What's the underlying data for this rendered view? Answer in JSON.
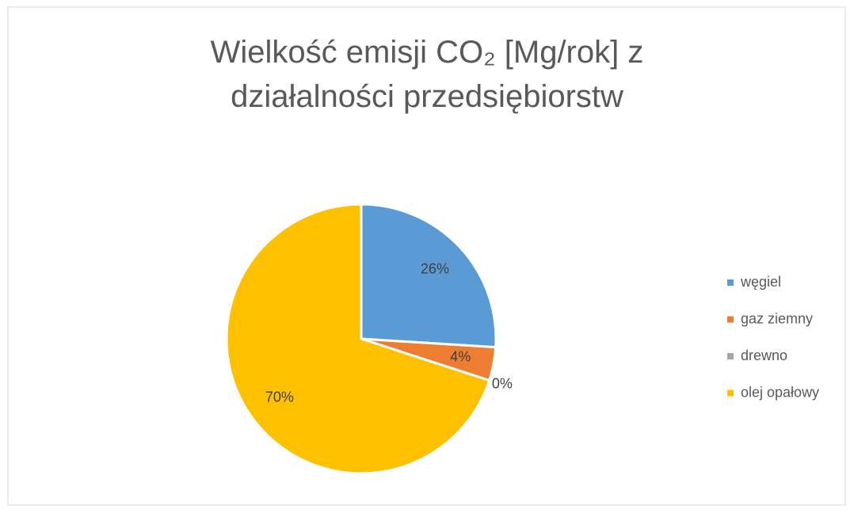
{
  "chart_data": {
    "type": "pie",
    "title": "Wielkość emisji CO₂ [Mg/rok] z działalności przedsiębiorstw",
    "categories": [
      "węgiel",
      "gaz ziemny",
      "drewno",
      "olej opałowy"
    ],
    "values": [
      26,
      4,
      0,
      70
    ],
    "value_labels": [
      "26%",
      "4%",
      "0%",
      "70%"
    ],
    "colors": [
      "#5b9bd5",
      "#ed7d31",
      "#a5a5a5",
      "#ffc000"
    ],
    "legend": "right"
  }
}
